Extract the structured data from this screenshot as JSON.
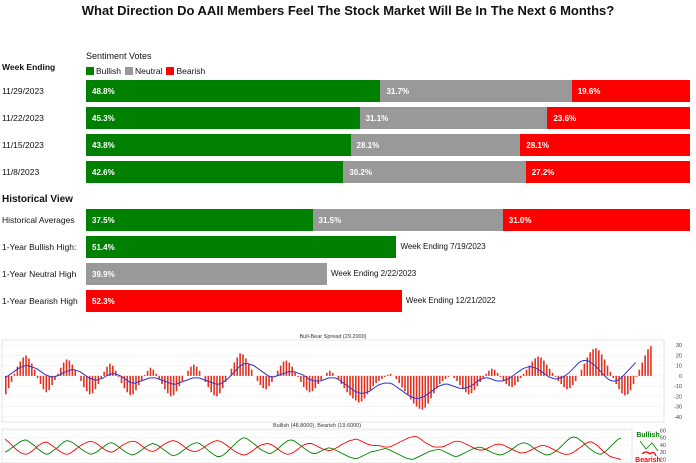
{
  "title": "What Direction Do AAII Members Feel The Stock Market Will Be In The Next 6 Months?",
  "colors": {
    "bullish": "#008000",
    "neutral": "#999999",
    "bearish": "#ff0000",
    "line": "#3333cc"
  },
  "headers": {
    "week_ending": "Week Ending",
    "sentiment_votes": "Sentiment Votes",
    "historical_view": "Historical View"
  },
  "legend": [
    "Bullish",
    "Neutral",
    "Bearish"
  ],
  "chart_data": [
    {
      "type": "bar",
      "title": "What Direction Do AAII Members Feel The Stock Market Will Be In The Next 6 Months?",
      "stacked": true,
      "categories": [
        "11/29/2023",
        "11/22/2023",
        "11/15/2023",
        "11/8/2023"
      ],
      "series": [
        {
          "name": "Bullish",
          "values": [
            48.8,
            45.3,
            43.8,
            42.6
          ],
          "labels": [
            "48.8%",
            "45.3%",
            "43.8%",
            "42.6%"
          ]
        },
        {
          "name": "Neutral",
          "values": [
            31.7,
            31.1,
            28.1,
            30.2
          ],
          "labels": [
            "31.7%",
            "31.1%",
            "28.1%",
            "30.2%"
          ]
        },
        {
          "name": "Bearish",
          "values": [
            19.6,
            23.6,
            28.1,
            27.2
          ],
          "labels": [
            "19.6%",
            "23.6%",
            "28.1%",
            "27.2%"
          ]
        }
      ]
    },
    {
      "type": "bar",
      "stacked": true,
      "categories": [
        "Historical Averages"
      ],
      "series": [
        {
          "name": "Bullish",
          "values": [
            37.5
          ],
          "labels": [
            "37.5%"
          ]
        },
        {
          "name": "Neutral",
          "values": [
            31.5
          ],
          "labels": [
            "31.5%"
          ]
        },
        {
          "name": "Bearish",
          "values": [
            31.0
          ],
          "labels": [
            "31.0%"
          ]
        }
      ]
    },
    {
      "type": "bar",
      "rows": [
        {
          "label": "1-Year Bullish High:",
          "value": 51.4,
          "text": "51.4%",
          "series": "bullish",
          "note": "Week Ending 7/19/2023"
        },
        {
          "label": "1-Year Neutral High",
          "value": 39.9,
          "text": "39.9%",
          "series": "neutral",
          "note": "Week Ending 2/22/2023"
        },
        {
          "label": "1-Year Bearish High",
          "value": 52.3,
          "text": "52.3%",
          "series": "bearish",
          "note": "Week Ending 12/21/2022"
        }
      ]
    },
    {
      "type": "bar",
      "title": "Bull-Bear Spread (29.2000)",
      "ylim": [
        -45,
        35
      ],
      "yticks": [
        30,
        20,
        10,
        0,
        -10,
        -20,
        -30,
        -40
      ],
      "spread": [
        -18,
        -12,
        -6,
        2,
        9,
        14,
        18,
        20,
        17,
        12,
        6,
        -2,
        -8,
        -13,
        -16,
        -14,
        -9,
        -4,
        2,
        8,
        13,
        16,
        15,
        11,
        6,
        0,
        -5,
        -11,
        -15,
        -18,
        -17,
        -13,
        -8,
        -2,
        4,
        9,
        12,
        10,
        5,
        -1,
        -7,
        -12,
        -16,
        -19,
        -18,
        -14,
        -9,
        -4,
        1,
        5,
        8,
        6,
        2,
        -3,
        -8,
        -13,
        -17,
        -20,
        -19,
        -15,
        -10,
        -5,
        0,
        5,
        9,
        11,
        9,
        5,
        0,
        -6,
        -11,
        -16,
        -19,
        -20,
        -17,
        -12,
        -6,
        0,
        7,
        13,
        18,
        22,
        21,
        17,
        12,
        6,
        0,
        -5,
        -9,
        -12,
        -13,
        -10,
        -6,
        -1,
        5,
        10,
        14,
        15,
        13,
        9,
        4,
        -1,
        -6,
        -11,
        -14,
        -16,
        -15,
        -12,
        -8,
        -4,
        0,
        3,
        5,
        3,
        0,
        -4,
        -8,
        -12,
        -16,
        -19,
        -22,
        -24,
        -26,
        -25,
        -22,
        -18,
        -14,
        -10,
        -7,
        -5,
        -3,
        -1,
        1,
        2,
        0,
        -3,
        -7,
        -11,
        -15,
        -19,
        -23,
        -27,
        -30,
        -32,
        -33,
        -31,
        -27,
        -22,
        -17,
        -12,
        -8,
        -5,
        -3,
        -1,
        0,
        -2,
        -5,
        -9,
        -13,
        -16,
        -18,
        -17,
        -14,
        -10,
        -6,
        -2,
        2,
        5,
        7,
        6,
        3,
        -1,
        -5,
        -8,
        -10,
        -11,
        -9,
        -6,
        -2,
        2,
        6,
        10,
        14,
        17,
        19,
        18,
        15,
        11,
        7,
        3,
        -1,
        -5,
        -8,
        -11,
        -13,
        -12,
        -9,
        -5,
        0,
        6,
        12,
        18,
        23,
        26,
        27,
        25,
        21,
        16,
        10,
        4,
        -2,
        -8,
        -13,
        -17,
        -19,
        -18,
        -14,
        -8,
        -1,
        6,
        13,
        20,
        26,
        29
      ],
      "avg": [
        -2,
        0,
        2,
        4,
        6,
        8,
        9,
        10,
        10,
        9,
        8,
        7,
        5,
        3,
        1,
        0,
        -1,
        -1,
        0,
        1,
        3,
        4,
        5,
        6,
        6,
        5,
        4,
        2,
        0,
        -2,
        -3,
        -4,
        -4,
        -3,
        -2,
        0,
        1,
        2,
        2,
        1,
        0,
        -2,
        -4,
        -6,
        -7,
        -7,
        -6,
        -5,
        -4,
        -3,
        -2,
        -2,
        -2,
        -3,
        -4,
        -5,
        -6,
        -7,
        -8,
        -8,
        -7,
        -6,
        -5,
        -4,
        -3,
        -2,
        -2,
        -2,
        -3,
        -4,
        -5,
        -6,
        -7,
        -8,
        -8,
        -7,
        -5,
        -3,
        0,
        3,
        6,
        9,
        11,
        12,
        12,
        11,
        10,
        8,
        6,
        4,
        2,
        0,
        -1,
        -1,
        0,
        1,
        2,
        3,
        4,
        4,
        4,
        3,
        2,
        1,
        -1,
        -3,
        -4,
        -5,
        -5,
        -5,
        -4,
        -3,
        -2,
        -2,
        -2,
        -3,
        -5,
        -7,
        -9,
        -11,
        -13,
        -15,
        -16,
        -17,
        -17,
        -16,
        -15,
        -13,
        -11,
        -9,
        -8,
        -7,
        -7,
        -7,
        -8,
        -10,
        -12,
        -14,
        -16,
        -18,
        -20,
        -21,
        -22,
        -22,
        -21,
        -20,
        -18,
        -16,
        -14,
        -12,
        -10,
        -9,
        -8,
        -8,
        -9,
        -10,
        -11,
        -12,
        -12,
        -12,
        -11,
        -10,
        -8,
        -6,
        -4,
        -3,
        -2,
        -2,
        -3,
        -4,
        -5,
        -5,
        -5,
        -4,
        -3,
        -1,
        1,
        3,
        5,
        7,
        8,
        9,
        9,
        8,
        7,
        5,
        3,
        1,
        -1,
        -2,
        -3,
        -3,
        -2,
        -1,
        1,
        3,
        6,
        9,
        12,
        14,
        15,
        15,
        14,
        12,
        10,
        7,
        4,
        1,
        -2,
        -4,
        -5,
        -5,
        -4,
        -2,
        1,
        4,
        7,
        10,
        13
      ]
    },
    {
      "type": "line",
      "title": "Bullish (48.8000), Bearish (19.6000)",
      "ylim": [
        15,
        62
      ],
      "yticks": [
        60,
        50,
        40,
        30,
        20
      ],
      "series": [
        {
          "name": "Bullish",
          "values": [
            30,
            32,
            35,
            38,
            41,
            44,
            46,
            47,
            45,
            42,
            39,
            35,
            32,
            29,
            27,
            28,
            31,
            34,
            37,
            41,
            44,
            46,
            45,
            43,
            40,
            37,
            34,
            31,
            29,
            27,
            28,
            30,
            33,
            36,
            39,
            42,
            43,
            42,
            39,
            36,
            33,
            30,
            28,
            26,
            27,
            29,
            32,
            35,
            38,
            40,
            42,
            41,
            39,
            36,
            33,
            30,
            27,
            25,
            26,
            28,
            31,
            34,
            37,
            40,
            42,
            43,
            42,
            39,
            36,
            32,
            29,
            26,
            24,
            24,
            26,
            29,
            33,
            37,
            41,
            45,
            48,
            50,
            49,
            46,
            43,
            40,
            36,
            33,
            31,
            29,
            28,
            30,
            33,
            36,
            40,
            43,
            46,
            47,
            46,
            43,
            40,
            37,
            34,
            31,
            29,
            28,
            29,
            31,
            33,
            35,
            36,
            35,
            33,
            31,
            29,
            27,
            25,
            23,
            22,
            21,
            22,
            24,
            26,
            28,
            30,
            31,
            32,
            33,
            34,
            35,
            34,
            32,
            30,
            28,
            26,
            24,
            22,
            21,
            20,
            21,
            23,
            25,
            27,
            29,
            31,
            32,
            33,
            34,
            33,
            31,
            29,
            27,
            25,
            24,
            25,
            27,
            29,
            31,
            33,
            35,
            36,
            37,
            36,
            34,
            32,
            30,
            28,
            27,
            26,
            27,
            29,
            31,
            34,
            37,
            40,
            42,
            43,
            42,
            40,
            37,
            34,
            31,
            29,
            27,
            26,
            27,
            29,
            32,
            35,
            39,
            43,
            47,
            50,
            51,
            50,
            47,
            44,
            40,
            36,
            33,
            30,
            28,
            27,
            29,
            32,
            36,
            40,
            44,
            48,
            49
          ]
        },
        {
          "name": "Bearish",
          "values": [
            48,
            45,
            41,
            37,
            33,
            30,
            28,
            27,
            28,
            31,
            34,
            38,
            41,
            43,
            44,
            42,
            39,
            36,
            33,
            30,
            28,
            27,
            28,
            31,
            34,
            37,
            40,
            42,
            44,
            45,
            44,
            42,
            39,
            36,
            33,
            31,
            30,
            31,
            34,
            37,
            40,
            42,
            44,
            45,
            45,
            43,
            40,
            37,
            34,
            32,
            31,
            32,
            35,
            38,
            41,
            43,
            45,
            46,
            45,
            43,
            40,
            37,
            34,
            32,
            31,
            31,
            33,
            35,
            38,
            41,
            43,
            45,
            46,
            45,
            43,
            40,
            37,
            34,
            31,
            29,
            27,
            26,
            27,
            29,
            32,
            35,
            38,
            40,
            41,
            42,
            41,
            39,
            36,
            33,
            30,
            28,
            27,
            28,
            30,
            33,
            36,
            39,
            41,
            42,
            42,
            40,
            38,
            36,
            34,
            33,
            32,
            33,
            35,
            37,
            40,
            42,
            44,
            46,
            47,
            48,
            47,
            45,
            43,
            41,
            40,
            39,
            39,
            39,
            38,
            37,
            37,
            38,
            40,
            42,
            44,
            46,
            48,
            50,
            51,
            52,
            51,
            48,
            45,
            42,
            40,
            38,
            37,
            37,
            37,
            38,
            40,
            42,
            44,
            45,
            45,
            44,
            42,
            40,
            38,
            36,
            34,
            33,
            33,
            34,
            36,
            38,
            40,
            41,
            41,
            40,
            38,
            36,
            34,
            32,
            30,
            29,
            29,
            30,
            32,
            34,
            36,
            38,
            39,
            39,
            38,
            36,
            34,
            32,
            30,
            28,
            27,
            27,
            28,
            30,
            33,
            36,
            39,
            42,
            44,
            44,
            42,
            39,
            35,
            31,
            28,
            25,
            23,
            22,
            21,
            20
          ]
        }
      ]
    }
  ],
  "footer_legend": {
    "bullish": "Bullish",
    "bearish": "Bearish"
  }
}
